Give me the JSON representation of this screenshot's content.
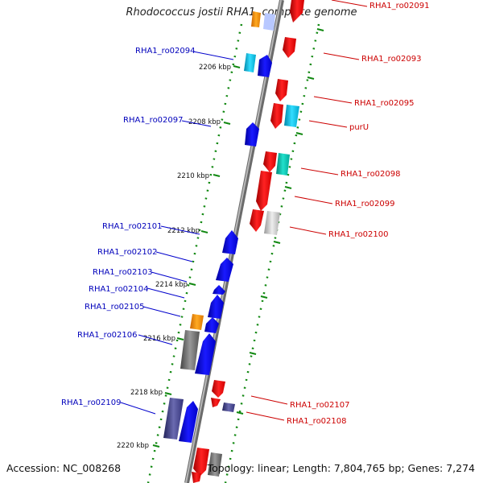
{
  "title": "Rhodococcus jostii RHA1, complete genome",
  "footer": {
    "accession": "Accession: NC_008268",
    "info": "Topology: linear; Length: 7,804,765 bp; Genes: 7,274"
  },
  "colors": {
    "forward_gene": "#0000ee",
    "reverse_gene": "#ee1111",
    "forward_label": "#0000bb",
    "reverse_label": "#cc0000",
    "axis": "#888888",
    "tick": "#118811"
  },
  "ticks": [
    {
      "label": "2206 kbp"
    },
    {
      "label": "2208 kbp"
    },
    {
      "label": "2210 kbp"
    },
    {
      "label": "2212 kbp"
    },
    {
      "label": "2214 kbp"
    },
    {
      "label": "2216 kbp"
    },
    {
      "label": "2218 kbp"
    },
    {
      "label": "2220 kbp"
    }
  ],
  "left_genes": [
    {
      "name": "RHA1_ro02094"
    },
    {
      "name": "RHA1_ro02097"
    },
    {
      "name": "RHA1_ro02101"
    },
    {
      "name": "RHA1_ro02102"
    },
    {
      "name": "RHA1_ro02103"
    },
    {
      "name": "RHA1_ro02104"
    },
    {
      "name": "RHA1_ro02105"
    },
    {
      "name": "RHA1_ro02106"
    },
    {
      "name": "RHA1_ro02109"
    }
  ],
  "right_genes": [
    {
      "name": "RHA1_ro02091"
    },
    {
      "name": "RHA1_ro02093"
    },
    {
      "name": "RHA1_ro02095"
    },
    {
      "name": "purU"
    },
    {
      "name": "RHA1_ro02098"
    },
    {
      "name": "RHA1_ro02099"
    },
    {
      "name": "RHA1_ro02100"
    },
    {
      "name": "RHA1_ro02107"
    },
    {
      "name": "RHA1_ro02108"
    }
  ]
}
